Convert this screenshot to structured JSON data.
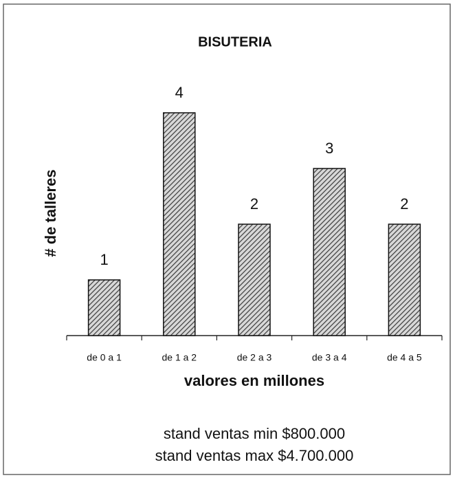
{
  "chart_data": {
    "type": "bar",
    "title": "BISUTERIA",
    "categories": [
      "de 0 a 1",
      "de 1 a 2",
      "de 2 a 3",
      "de 3 a 4",
      "de 4 a 5"
    ],
    "values": [
      1,
      4,
      2,
      3,
      2
    ],
    "color": "#3a3a3a",
    "ylim": [
      0,
      5
    ],
    "xlabel": "valores en millones",
    "ylabel": "# de talleres",
    "annotations": [
      "stand ventas min $800.000",
      "stand ventas max $4.700.000"
    ]
  }
}
